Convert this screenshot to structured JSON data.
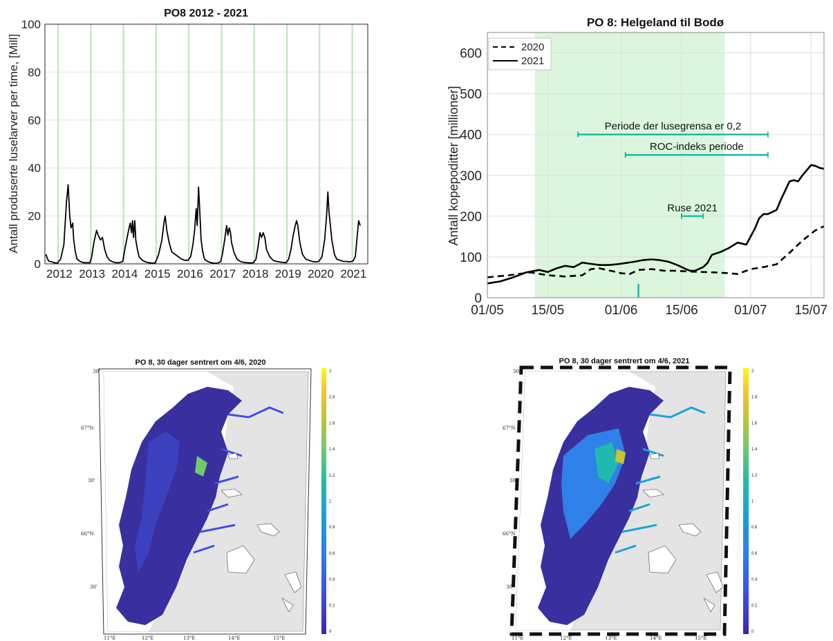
{
  "chart_data": [
    {
      "type": "line",
      "title": "PO8 2012 - 2021",
      "ylabel": "Antall produserte luselarver per time, [Mill]",
      "xlabel": "",
      "ylim": [
        0,
        100
      ],
      "yticks": [
        "0",
        "20",
        "40",
        "60",
        "80",
        "100"
      ],
      "xticks": [
        "2012",
        "2013",
        "2014",
        "2015",
        "2016",
        "2017",
        "2018",
        "2019",
        "2020",
        "2021"
      ],
      "grid": true,
      "highlight_bands_color": "#bfe8bf",
      "highlight_band_starts": [
        2012.0,
        2013.0,
        2014.0,
        2015.0,
        2016.0,
        2017.0,
        2018.0,
        2019.0,
        2020.0,
        2021.0
      ],
      "series": [
        {
          "color": "#000000",
          "x": [
            2011.65,
            2011.7,
            2011.75,
            2011.8,
            2011.9,
            2012.0,
            2012.1,
            2012.2,
            2012.28,
            2012.33,
            2012.38,
            2012.42,
            2012.47,
            2012.5,
            2012.55,
            2012.6,
            2012.7,
            2012.8,
            2012.9,
            2013.0,
            2013.05,
            2013.12,
            2013.2,
            2013.25,
            2013.32,
            2013.38,
            2013.45,
            2013.52,
            2013.6,
            2013.7,
            2013.8,
            2013.9,
            2014.0,
            2014.05,
            2014.12,
            2014.18,
            2014.23,
            2014.27,
            2014.3,
            2014.33,
            2014.37,
            2014.4,
            2014.45,
            2014.5,
            2014.6,
            2014.7,
            2014.8,
            2014.9,
            2015.0,
            2015.1,
            2015.2,
            2015.26,
            2015.3,
            2015.35,
            2015.42,
            2015.5,
            2015.6,
            2015.7,
            2015.8,
            2015.9,
            2016.0,
            2016.08,
            2016.15,
            2016.2,
            2016.25,
            2016.28,
            2016.32,
            2016.36,
            2016.4,
            2016.45,
            2016.5,
            2016.6,
            2016.7,
            2016.8,
            2016.9,
            2017.0,
            2017.05,
            2017.12,
            2017.18,
            2017.22,
            2017.26,
            2017.3,
            2017.33,
            2017.4,
            2017.5,
            2017.6,
            2017.7,
            2017.8,
            2017.9,
            2018.0,
            2018.08,
            2018.15,
            2018.2,
            2018.25,
            2018.3,
            2018.35,
            2018.4,
            2018.5,
            2018.6,
            2018.7,
            2018.8,
            2018.9,
            2019.0,
            2019.08,
            2019.15,
            2019.22,
            2019.28,
            2019.32,
            2019.36,
            2019.42,
            2019.5,
            2019.6,
            2019.7,
            2019.8,
            2019.9,
            2020.0,
            2020.1,
            2020.18,
            2020.24,
            2020.28,
            2020.31,
            2020.35,
            2020.4,
            2020.48,
            2020.55,
            2020.65,
            2020.75,
            2020.85,
            2020.95,
            2021.05,
            2021.12,
            2021.18,
            2021.22,
            2021.27
          ],
          "y": [
            4,
            2,
            1,
            1,
            0.5,
            0.3,
            2,
            8,
            26,
            33,
            20,
            15,
            17,
            10,
            5,
            2,
            1,
            0.5,
            0.5,
            0.5,
            3,
            9,
            14,
            12,
            10,
            11,
            6,
            3,
            1.5,
            0.8,
            0.5,
            0.5,
            1,
            5,
            10,
            14,
            17,
            13,
            18,
            11,
            18,
            10,
            6,
            3,
            1.5,
            0.8,
            0.5,
            0.3,
            0.5,
            4,
            10,
            17,
            20,
            14,
            9,
            5,
            4,
            3,
            2,
            1.5,
            1.5,
            3,
            8,
            14,
            23,
            16,
            32,
            22,
            10,
            5,
            2,
            1,
            0.5,
            0.3,
            0.3,
            1,
            4,
            10,
            16,
            12,
            15,
            13,
            9,
            5,
            2,
            1,
            0.6,
            0.5,
            0.4,
            0.5,
            2,
            8,
            13,
            11,
            13,
            11,
            6,
            3,
            1.5,
            1,
            0.8,
            0.6,
            0.5,
            2,
            6,
            12,
            16,
            18,
            16,
            9,
            4,
            2,
            1.5,
            1,
            0.8,
            1,
            3,
            10,
            20,
            30,
            22,
            17,
            10,
            4,
            2,
            1.5,
            1,
            1,
            0.8,
            1.2,
            3,
            12,
            18,
            16
          ]
        }
      ]
    },
    {
      "type": "line",
      "title": "PO 8: Helgeland til Bodø",
      "ylabel": "Antall kopepoditter [millioner]",
      "xlabel": "",
      "ylim": [
        0,
        650
      ],
      "yticks": [
        "0",
        "100",
        "200",
        "300",
        "400",
        "500",
        "600"
      ],
      "xticks": [
        "01/05",
        "15/05",
        "01/06",
        "15/06",
        "01/07",
        "15/07"
      ],
      "xlim_days": [
        0,
        78
      ],
      "grid": true,
      "legend": "top-left",
      "shaded_period_days": [
        11,
        55
      ],
      "shaded_color": "#dbf6dc",
      "annotations": [
        {
          "label": "Periode der lusegrensa er 0,2",
          "x0": 21,
          "x1": 65,
          "y": 400
        },
        {
          "label": "ROC-indeks periode",
          "x0": 32,
          "x1": 65,
          "y": 350
        },
        {
          "label": "Ruse 2021",
          "x0": 45,
          "x1": 50,
          "y": 200
        }
      ],
      "annotation_color": "#1fb8a6",
      "marker_day": 35,
      "series": [
        {
          "name": "2020",
          "style": "dashed",
          "x": [
            0,
            5,
            10,
            14,
            18,
            22,
            24,
            26,
            29,
            31,
            33,
            35,
            38,
            41,
            44,
            47,
            50,
            53,
            56,
            58,
            61,
            64,
            67,
            70,
            73,
            76,
            78
          ],
          "y": [
            50,
            55,
            62,
            55,
            52,
            55,
            70,
            72,
            65,
            60,
            58,
            68,
            70,
            66,
            66,
            64,
            63,
            62,
            60,
            58,
            70,
            75,
            82,
            110,
            140,
            165,
            175
          ]
        },
        {
          "name": "2021",
          "style": "solid",
          "x": [
            0,
            3,
            6,
            9,
            12,
            14,
            16,
            18,
            20,
            22,
            24,
            26,
            28,
            30,
            32,
            34,
            36,
            38,
            40,
            42,
            44,
            46,
            47,
            48,
            49,
            50,
            51,
            52,
            54,
            56,
            58,
            60,
            62,
            63,
            64,
            65,
            66,
            67,
            68,
            70,
            71,
            72,
            73,
            75,
            76,
            77,
            78
          ],
          "y": [
            35,
            40,
            50,
            62,
            68,
            63,
            72,
            78,
            75,
            86,
            83,
            80,
            80,
            82,
            85,
            88,
            92,
            94,
            92,
            88,
            80,
            70,
            66,
            66,
            70,
            75,
            85,
            105,
            112,
            122,
            135,
            130,
            170,
            195,
            205,
            205,
            210,
            215,
            240,
            285,
            288,
            285,
            300,
            325,
            323,
            318,
            316
          ]
        }
      ]
    }
  ],
  "maps": [
    {
      "title": "PO 8, 30 dager sentrert om 4/6, 2020",
      "lat_ticks": [
        "67°N",
        "66°N",
        "30'",
        "30'",
        "30'"
      ],
      "lon_ticks": [
        "11°E",
        "12°E",
        "13°E",
        "14°E",
        "15°E"
      ],
      "colorbar_ticks": [
        "2",
        "1.8",
        "1.6",
        "1.4",
        "1.2",
        "1",
        "0.8",
        "0.6",
        "0.4",
        "0.2",
        "0"
      ]
    },
    {
      "title": "PO 8, 30 dager sentrert om 4/6, 2021",
      "lat_ticks": [
        "67°N",
        "66°N",
        "30'",
        "30'",
        "30'"
      ],
      "lon_ticks": [
        "11°E",
        "12°E",
        "13°E",
        "14°E",
        "15°E"
      ],
      "colorbar_ticks": [
        "2",
        "1.8",
        "1.6",
        "1.4",
        "1.2",
        "1",
        "0.8",
        "0.6",
        "0.4",
        "0.2",
        "0"
      ]
    }
  ]
}
